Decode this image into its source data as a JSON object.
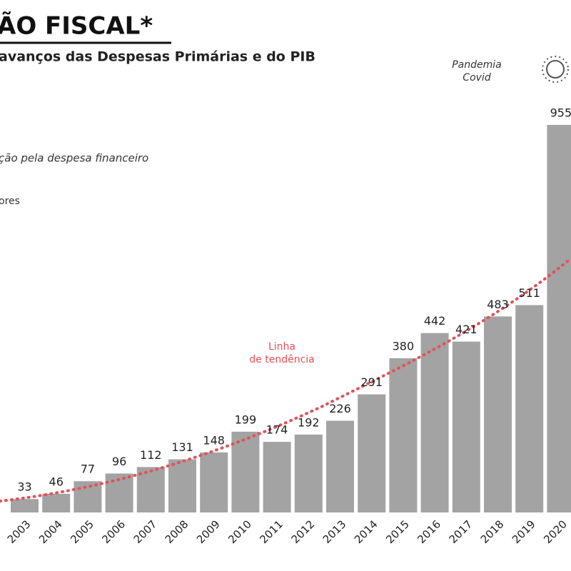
{
  "chart_data": {
    "type": "bar",
    "title": "ÃO FISCAL*",
    "subtitle": "avanços das Despesas Primárias e do PIB",
    "notes": [
      "ção pela despesa financeiro",
      "ores"
    ],
    "annotations": [
      "Pandemia Covid",
      "Linha de tendência"
    ],
    "categories": [
      "2003",
      "2004",
      "2005",
      "2006",
      "2007",
      "2008",
      "2009",
      "2010",
      "2011",
      "2012",
      "2013",
      "2014",
      "2015",
      "2016",
      "2017",
      "2018",
      "2019",
      "2020"
    ],
    "values": [
      33,
      46,
      77,
      96,
      112,
      131,
      148,
      199,
      174,
      192,
      226,
      291,
      380,
      442,
      421,
      483,
      511,
      955
    ],
    "color": "#a3a3a3",
    "trend_color": "#e0525a",
    "ylim": [
      0,
      1000
    ]
  }
}
